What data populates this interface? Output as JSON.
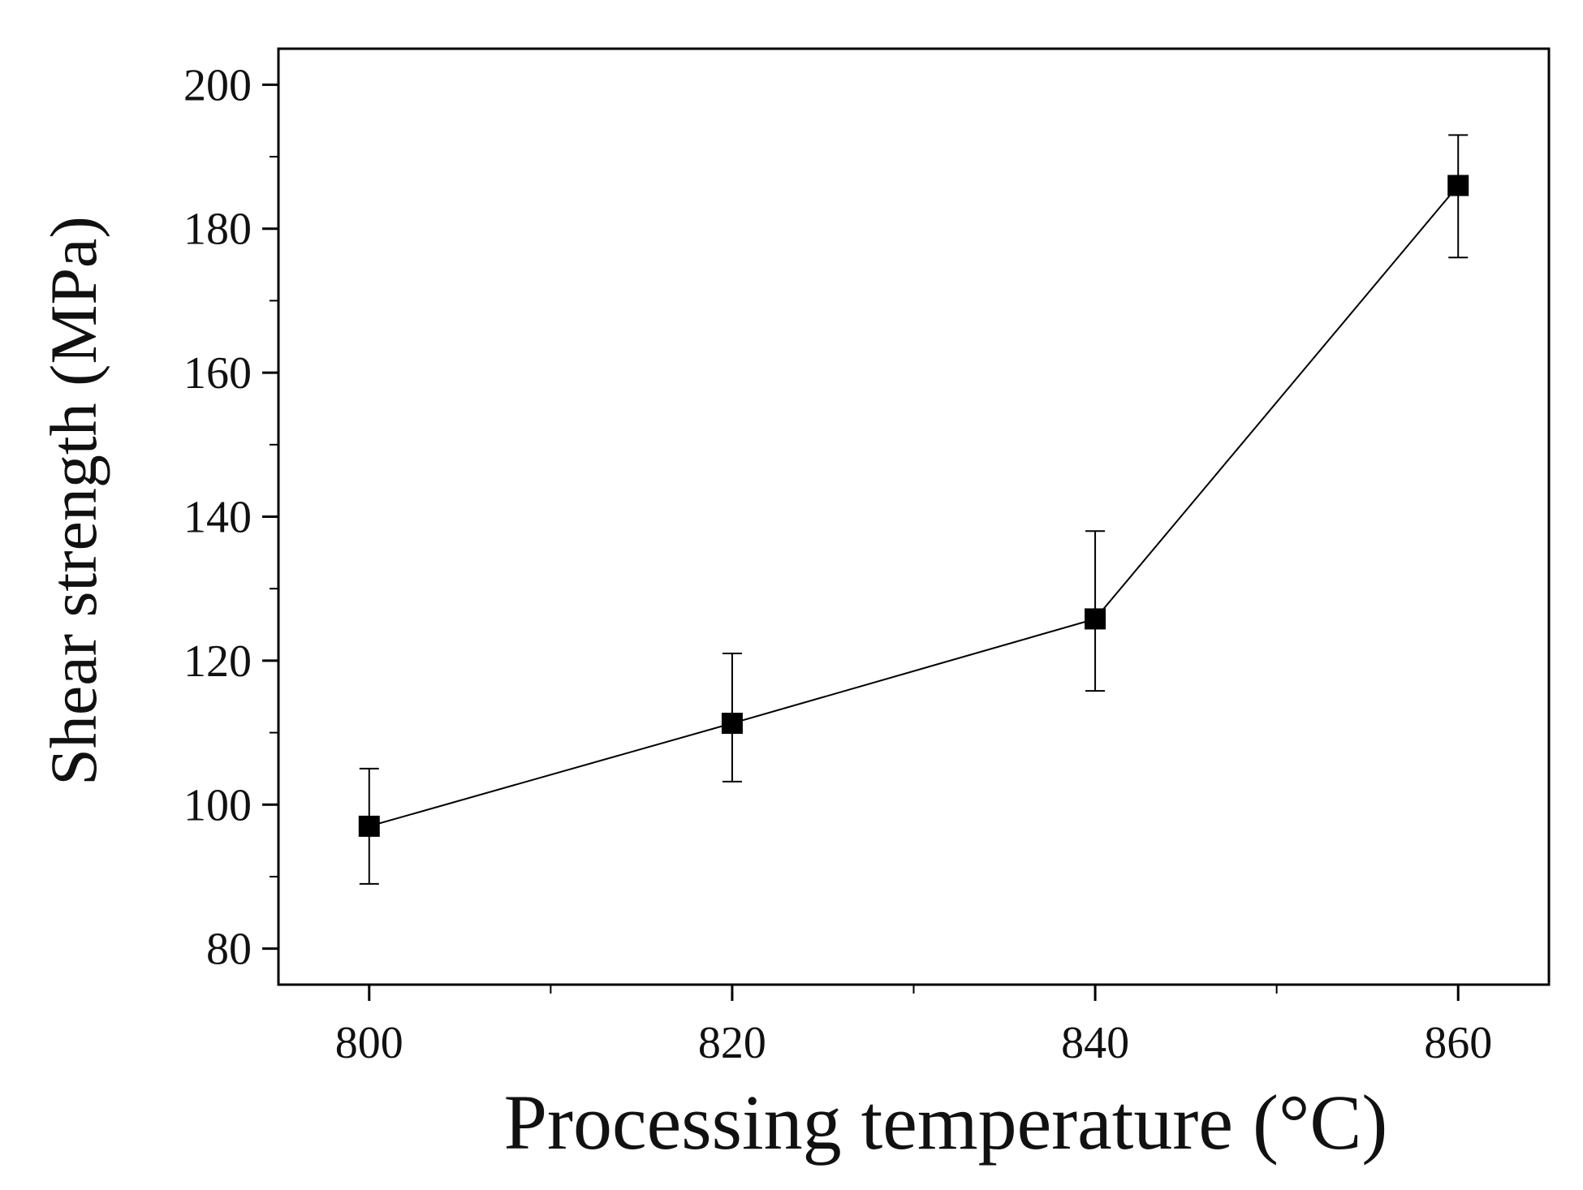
{
  "chart_data": {
    "type": "line",
    "title": "",
    "xlabel": "Processing temperature (°C)",
    "ylabel": "Shear strength (MPa)",
    "xlim": [
      795,
      865
    ],
    "ylim": [
      75,
      205
    ],
    "xticks": [
      800,
      820,
      840,
      860
    ],
    "xtick_labels": [
      "800",
      "820",
      "840",
      "860"
    ],
    "xminor": [
      810,
      830,
      850
    ],
    "yticks": [
      80,
      100,
      120,
      140,
      160,
      180,
      200
    ],
    "ytick_labels": [
      "80",
      "100",
      "120",
      "140",
      "160",
      "180",
      "200"
    ],
    "yminor": [
      90,
      110,
      130,
      150,
      170,
      190
    ],
    "grid": false,
    "series": [
      {
        "name": "Shear strength",
        "marker": "square",
        "color": "#000000",
        "x": [
          800,
          820,
          840,
          860
        ],
        "y": [
          97,
          111.3,
          125.8,
          186
        ],
        "error_low": [
          89,
          103.2,
          115.8,
          176
        ],
        "error_high": [
          105,
          121,
          138,
          193
        ]
      }
    ]
  }
}
